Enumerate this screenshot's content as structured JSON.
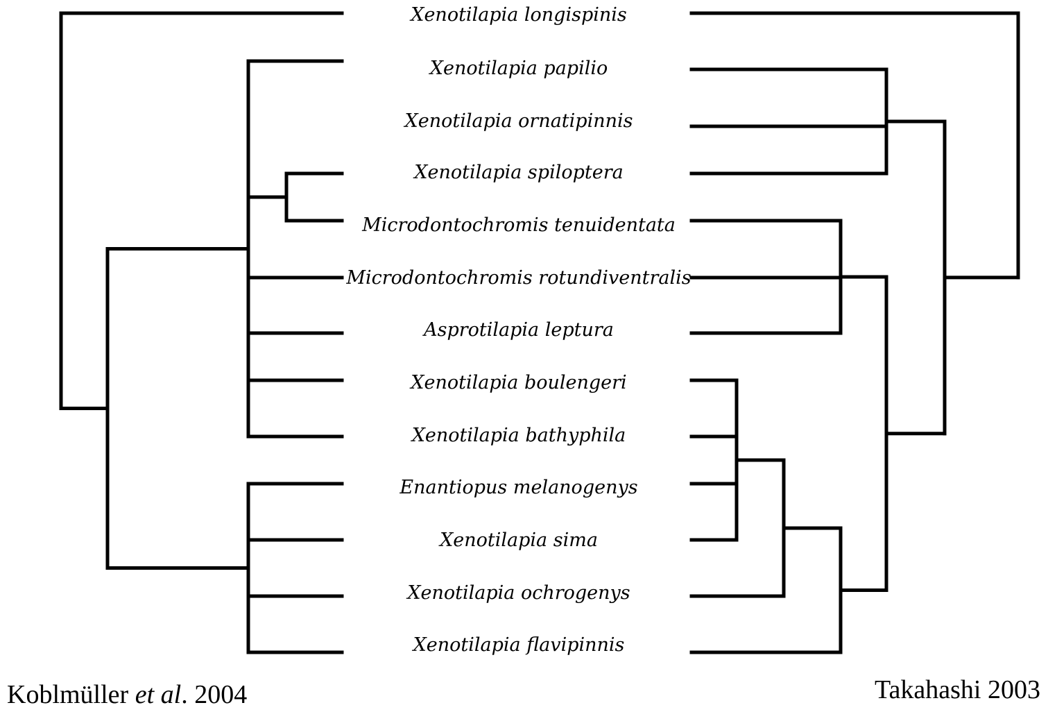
{
  "taxa": [
    "Xenotilapia longispinis",
    "Xenotilapia papilio",
    "Xenotilapia ornatipinnis",
    "Xenotilapia spiloptera",
    "Microdontochromis tenuidentata",
    "Microdontochromis rotundiventralis",
    "Asprotilapia leptura",
    "Xenotilapia boulengeri",
    "Xenotilapia bathyphila",
    "Enantiopus melanogenys",
    "Xenotilapia sima",
    "Xenotilapia ochrogenys",
    "Xenotilapia flavipinnis"
  ],
  "left_tree": {
    "credit": {
      "author": "Koblmüller",
      "etal": "et al",
      "rest": ". 2004"
    },
    "topology": "(0,((1,(3,4),5,6,7,8),(9,10,11,12)))"
  },
  "right_tree": {
    "credit": "Takahashi 2003",
    "topology": "(0,((1,2,3),((4,5,6),(((7,8,9,10),11),12))))"
  },
  "colors": {
    "line": "#000000",
    "background": "#ffffff"
  }
}
